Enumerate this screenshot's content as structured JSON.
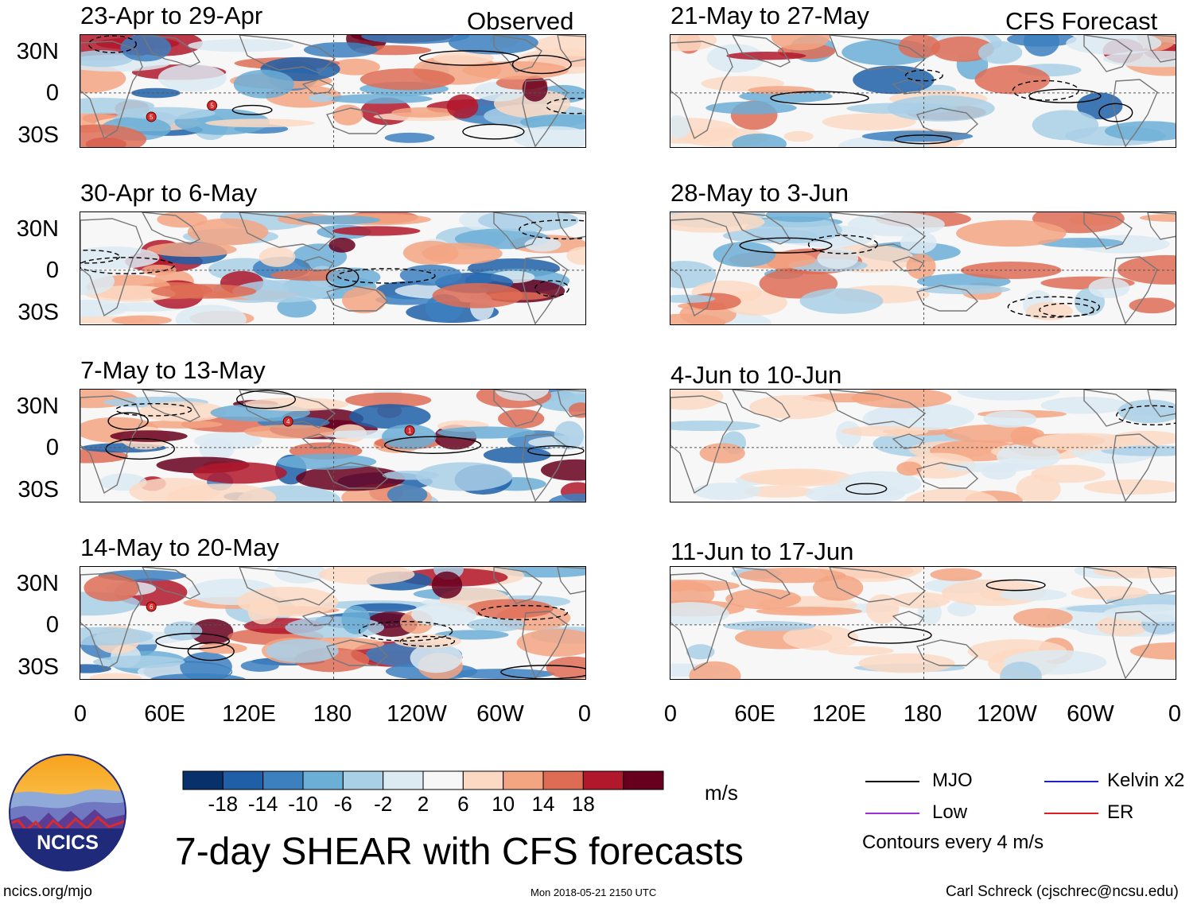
{
  "figure": {
    "title": "7-day SHEAR with CFS forecasts",
    "website": "ncics.org/mjo",
    "timestamp": "Mon 2018-05-21 2150 UTC",
    "credit": "Carl Schreck (cjschrec@ncsu.edu)",
    "logo_text": "NCICS",
    "left_column_label": "Observed",
    "right_column_label": "CFS Forecast"
  },
  "chart_data": {
    "type": "heatmap",
    "variable": "7-day vertical wind shear anomaly",
    "units": "m/s",
    "latitude_ticks": [
      "30N",
      "0",
      "30S"
    ],
    "longitude_ticks": [
      "0",
      "60E",
      "120E",
      "180",
      "120W",
      "60W",
      "0"
    ],
    "panels": [
      {
        "title": "23-Apr to 29-Apr",
        "source": "Observed",
        "storms": [
          "5",
          "5"
        ]
      },
      {
        "title": "30-Apr to 6-May",
        "source": "Observed",
        "storms": []
      },
      {
        "title": "7-May to 13-May",
        "source": "Observed",
        "storms": [
          "4",
          "1"
        ]
      },
      {
        "title": "14-May to 20-May",
        "source": "Observed",
        "storms": [
          "6"
        ]
      },
      {
        "title": "21-May to 27-May",
        "source": "CFS Forecast",
        "storms": []
      },
      {
        "title": "28-May to 3-Jun",
        "source": "CFS Forecast",
        "storms": []
      },
      {
        "title": "4-Jun to 10-Jun",
        "source": "CFS Forecast",
        "storms": []
      },
      {
        "title": "11-Jun to 17-Jun",
        "source": "CFS Forecast",
        "storms": []
      }
    ],
    "colorbar": {
      "labels": [
        "-18",
        "-14",
        "-10",
        "-6",
        "-2",
        "2",
        "6",
        "10",
        "14",
        "18"
      ],
      "colors": [
        "#08306b",
        "#1f5fa8",
        "#3c80c0",
        "#6baed6",
        "#a9cfe6",
        "#dceaf2",
        "#f7f7f7",
        "#fcd9c3",
        "#f3a582",
        "#de6c55",
        "#b2182b",
        "#67001f"
      ],
      "units_label": "m/s"
    },
    "legend": {
      "items": [
        {
          "label": "MJO",
          "color": "#000000"
        },
        {
          "label": "Kelvin x2",
          "color": "#1f1fd0"
        },
        {
          "label": "Low",
          "color": "#9b30d6"
        },
        {
          "label": "ER",
          "color": "#dd1f1f"
        }
      ],
      "note": "Contours every 4 m/s"
    }
  }
}
